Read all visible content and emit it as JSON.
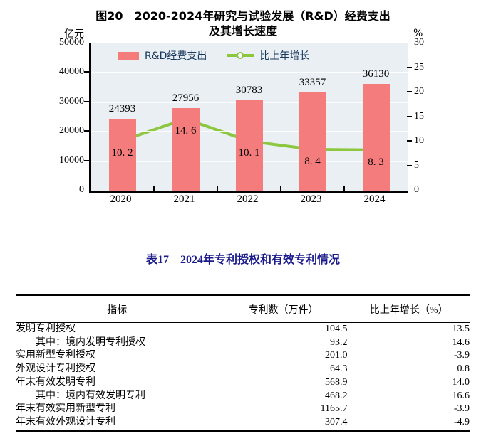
{
  "figure": {
    "title_line1": "图20　2020-2024年研究与试验发展（R&D）经费支出",
    "title_line2": "及其增长速度"
  },
  "colors": {
    "bar": "#F47C7C",
    "line": "#8DC63F",
    "plot_background": "#E9EFF3",
    "plot_frame": "#17375E",
    "table_title": "#1A1A8C"
  },
  "chart_data": {
    "type": "bar",
    "categories": [
      "2020",
      "2021",
      "2022",
      "2023",
      "2024"
    ],
    "series": [
      {
        "name": "R&D经费支出",
        "type": "bar",
        "axis": "left",
        "color": "#F47C7C",
        "values": [
          24393,
          27956,
          30783,
          33357,
          36130
        ],
        "labels": [
          "24393",
          "27956",
          "30783",
          "33357",
          "36130"
        ]
      },
      {
        "name": "比上年增长",
        "type": "line",
        "axis": "right",
        "color": "#8DC63F",
        "values": [
          10.2,
          14.6,
          10.1,
          8.4,
          8.3
        ],
        "labels": [
          "10. 2",
          "14. 6",
          "10. 1",
          "8. 4",
          "8. 3"
        ]
      }
    ],
    "left_axis": {
      "unit": "亿元",
      "min": 0,
      "max": 50000,
      "ticks": [
        0,
        10000,
        20000,
        30000,
        40000,
        50000
      ]
    },
    "right_axis": {
      "unit": "%",
      "min": 0,
      "max": 30,
      "ticks": [
        0,
        5,
        10,
        15,
        20,
        25,
        30
      ]
    },
    "legend_position": "top-left-inside",
    "grid": "horizontal-white"
  },
  "table": {
    "title": "表17　2024年专利授权和有效专利情况",
    "columns": [
      "指标",
      "专利数（万件）",
      "比上年增长（%）"
    ],
    "rows": [
      {
        "indicator": "发明专利授权",
        "indent": false,
        "count": "104.5",
        "growth": "13.5"
      },
      {
        "indicator": "其中：境内发明专利授权",
        "indent": true,
        "count": "93.2",
        "growth": "14.6"
      },
      {
        "indicator": "实用新型专利授权",
        "indent": false,
        "count": "201.0",
        "growth": "-3.9"
      },
      {
        "indicator": "外观设计专利授权",
        "indent": false,
        "count": "64.3",
        "growth": "0.8"
      },
      {
        "indicator": "年末有效发明专利",
        "indent": false,
        "count": "568.9",
        "growth": "14.0"
      },
      {
        "indicator": "其中：境内有效发明专利",
        "indent": true,
        "count": "468.2",
        "growth": "16.6"
      },
      {
        "indicator": "年末有效实用新型专利",
        "indent": false,
        "count": "1165.7",
        "growth": "-3.9"
      },
      {
        "indicator": "年末有效外观设计专利",
        "indent": false,
        "count": "307.4",
        "growth": "-4.9"
      }
    ]
  }
}
